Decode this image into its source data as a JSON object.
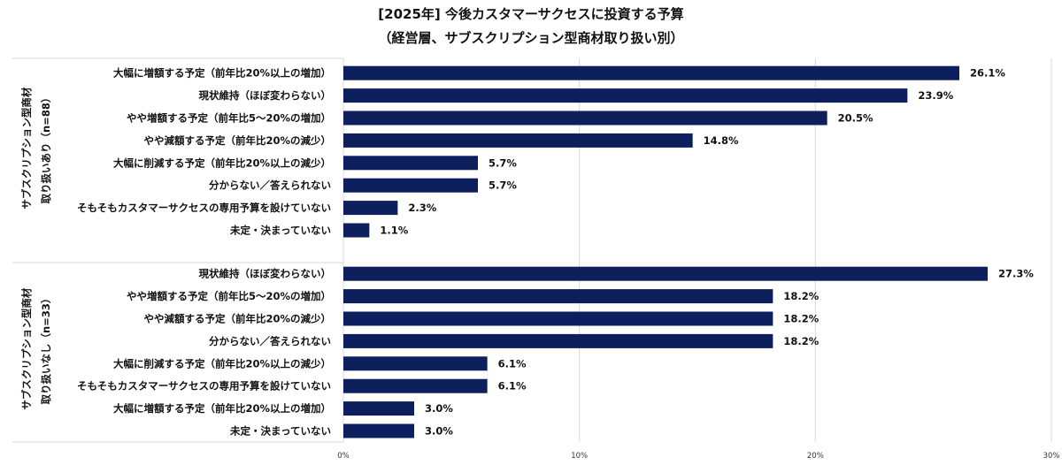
{
  "chart_data": {
    "type": "bar",
    "orientation": "horizontal",
    "title_line1": "[2025年] 今後カスタマーサクセスに投資する予算",
    "title_line2": "（経営層、サブスクリプション型商材取り扱い別）",
    "xlim": [
      0,
      30
    ],
    "x_ticks": [
      "0%",
      "10%",
      "20%",
      "30%"
    ],
    "grid": "vertical",
    "bar_color": "#0d1f5c",
    "groups": [
      {
        "label_line1": "サブスクリプション型商材",
        "label_line2": "取り扱いあり（n=88）",
        "categories": [
          "大幅に増額する予定（前年比20%以上の増加）",
          "現状維持（ほぼ変わらない）",
          "やや増額する予定（前年比5～20%の増加）",
          "やや減額する予定（前年比20%の減少）",
          "大幅に削減する予定（前年比20%以上の減少）",
          "分からない／答えられない",
          "そもそもカスタマーサクセスの専用予算を設けていない",
          "未定・決まっていない"
        ],
        "values": [
          26.1,
          23.9,
          20.5,
          14.8,
          5.7,
          5.7,
          2.3,
          1.1
        ],
        "value_labels": [
          "26.1%",
          "23.9%",
          "20.5%",
          "14.8%",
          "5.7%",
          "5.7%",
          "2.3%",
          "1.1%"
        ]
      },
      {
        "label_line1": "サブスクリプション型商材",
        "label_line2": "取り扱いなし（n=33）",
        "categories": [
          "現状維持（ほぼ変わらない）",
          "やや増額する予定（前年比5～20%の増加）",
          "やや減額する予定（前年比20%の減少）",
          "分からない／答えられない",
          "大幅に削減する予定（前年比20%以上の減少）",
          "そもそもカスタマーサクセスの専用予算を設けていない",
          "大幅に増額する予定（前年比20%以上の増加）",
          "未定・決まっていない"
        ],
        "values": [
          27.3,
          18.2,
          18.2,
          18.2,
          6.1,
          6.1,
          3.0,
          3.0
        ],
        "value_labels": [
          "27.3%",
          "18.2%",
          "18.2%",
          "18.2%",
          "6.1%",
          "6.1%",
          "3.0%",
          "3.0%"
        ]
      }
    ]
  }
}
